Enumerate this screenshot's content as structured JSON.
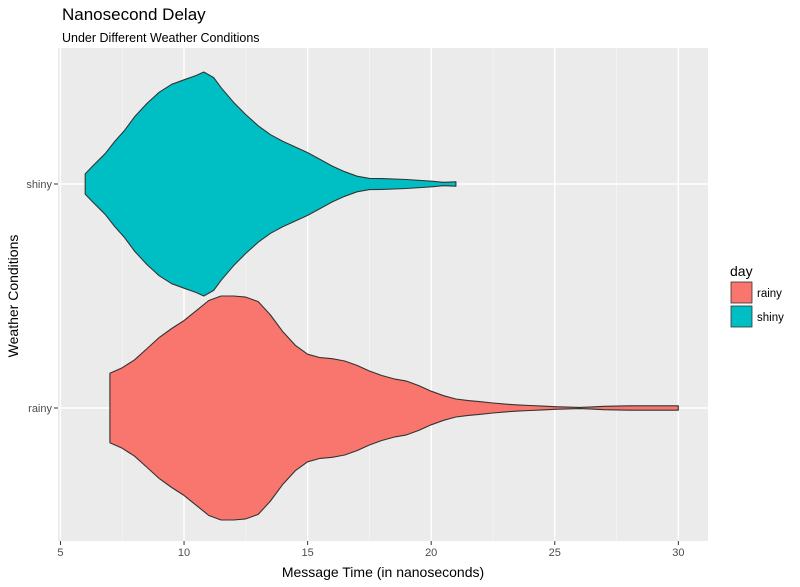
{
  "chart_data": {
    "type": "violin",
    "title": "Nanosecond Delay",
    "subtitle": "Under Different Weather Conditions",
    "xlabel": "Message Time (in nanoseconds)",
    "ylabel": "Weather Conditions",
    "xlim": [
      4.9,
      31.2
    ],
    "x_ticks": [
      5,
      10,
      15,
      20,
      25,
      30
    ],
    "categories": [
      "rainy",
      "shiny"
    ],
    "grid": true,
    "legend": {
      "title": "day",
      "position": "right",
      "entries": [
        {
          "label": "rainy",
          "color": "#F8766D"
        },
        {
          "label": "shiny",
          "color": "#00BFC4"
        }
      ]
    },
    "series": [
      {
        "name": "rainy",
        "color": "#F8766D",
        "range": [
          7,
          30
        ],
        "density": [
          [
            7,
            0.31
          ],
          [
            7.5,
            0.36
          ],
          [
            8,
            0.43
          ],
          [
            8.5,
            0.53
          ],
          [
            9,
            0.63
          ],
          [
            9.5,
            0.71
          ],
          [
            10,
            0.78
          ],
          [
            10.5,
            0.87
          ],
          [
            11,
            0.96
          ],
          [
            11.5,
            1.0
          ],
          [
            12,
            1.0
          ],
          [
            12.5,
            0.99
          ],
          [
            13,
            0.95
          ],
          [
            13.5,
            0.83
          ],
          [
            14,
            0.68
          ],
          [
            14.5,
            0.56
          ],
          [
            15,
            0.48
          ],
          [
            15.5,
            0.45
          ],
          [
            16,
            0.44
          ],
          [
            16.5,
            0.42
          ],
          [
            17,
            0.38
          ],
          [
            17.5,
            0.33
          ],
          [
            18,
            0.29
          ],
          [
            18.5,
            0.26
          ],
          [
            19,
            0.24
          ],
          [
            19.5,
            0.2
          ],
          [
            20,
            0.15
          ],
          [
            20.5,
            0.11
          ],
          [
            21,
            0.08
          ],
          [
            21.5,
            0.066
          ],
          [
            22,
            0.056
          ],
          [
            22.5,
            0.045
          ],
          [
            23,
            0.035
          ],
          [
            23.5,
            0.028
          ],
          [
            24,
            0.022
          ],
          [
            24.5,
            0.017
          ],
          [
            25,
            0.012
          ],
          [
            25.5,
            0.008
          ],
          [
            26,
            0.005
          ],
          [
            26.5,
            0.01
          ],
          [
            27,
            0.015
          ],
          [
            28,
            0.02
          ],
          [
            29,
            0.02
          ],
          [
            30,
            0.02
          ]
        ]
      },
      {
        "name": "shiny",
        "color": "#00BFC4",
        "range": [
          6,
          21
        ],
        "density": [
          [
            6,
            0.09
          ],
          [
            6.3,
            0.16
          ],
          [
            6.8,
            0.27
          ],
          [
            7.2,
            0.38
          ],
          [
            7.6,
            0.48
          ],
          [
            8,
            0.6
          ],
          [
            8.5,
            0.72
          ],
          [
            9,
            0.82
          ],
          [
            9.5,
            0.89
          ],
          [
            10,
            0.93
          ],
          [
            10.5,
            0.97
          ],
          [
            10.8,
            1.0
          ],
          [
            11.2,
            0.95
          ],
          [
            11.5,
            0.86
          ],
          [
            12,
            0.73
          ],
          [
            12.5,
            0.62
          ],
          [
            13,
            0.52
          ],
          [
            13.5,
            0.44
          ],
          [
            14,
            0.38
          ],
          [
            14.5,
            0.33
          ],
          [
            15,
            0.28
          ],
          [
            15.5,
            0.22
          ],
          [
            16,
            0.16
          ],
          [
            16.5,
            0.11
          ],
          [
            17,
            0.07
          ],
          [
            17.5,
            0.05
          ],
          [
            18,
            0.048
          ],
          [
            19,
            0.04
          ],
          [
            20,
            0.025
          ],
          [
            20.5,
            0.015
          ],
          [
            21,
            0.02
          ]
        ]
      }
    ]
  }
}
